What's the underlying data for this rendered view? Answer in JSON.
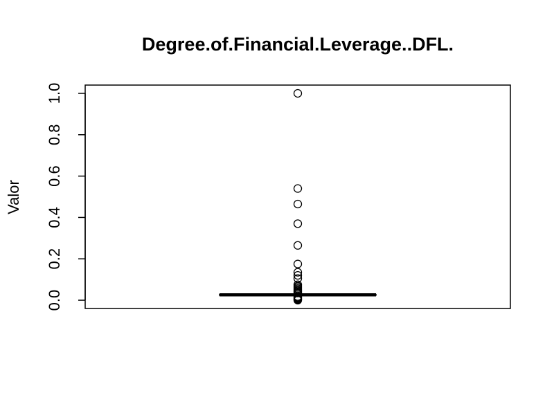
{
  "chart_data": {
    "type": "boxplot",
    "title": "Degree.of.Financial.Leverage..DFL.",
    "xlabel": "",
    "ylabel": "Valor",
    "ylim": [
      -0.04,
      1.04
    ],
    "yticks": [
      0.0,
      0.2,
      0.4,
      0.6,
      0.8,
      1.0
    ],
    "ytick_labels": [
      "0.0",
      "0.2",
      "0.4",
      "0.6",
      "0.8",
      "1.0"
    ],
    "grid": false,
    "box": {
      "min": 0.022,
      "q1": 0.024,
      "median": 0.026,
      "q3": 0.028,
      "max": 0.03
    },
    "outliers": [
      1.0,
      0.54,
      0.465,
      0.37,
      0.265,
      0.175,
      0.135,
      0.12,
      0.105,
      0.075,
      0.068,
      0.062,
      0.056,
      0.05,
      0.045,
      0.04,
      0.035,
      0.018,
      0.014,
      0.01,
      0.006,
      0.003,
      0.0
    ]
  }
}
